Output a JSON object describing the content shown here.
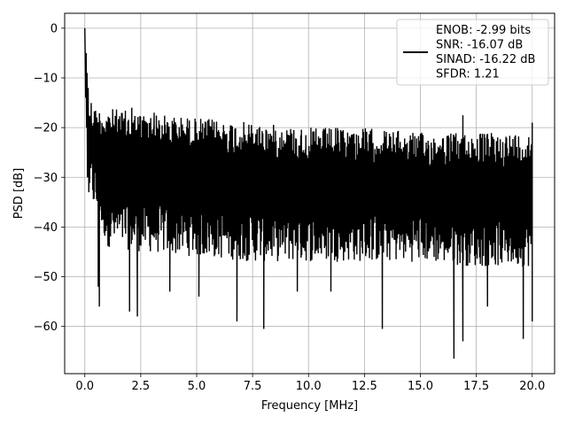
{
  "chart_data": {
    "type": "line",
    "title": "",
    "xlabel": "Frequency [MHz]",
    "ylabel": "PSD [dB]",
    "xlim": [
      -0.9,
      21.0
    ],
    "ylim": [
      -69.5,
      3.0
    ],
    "xticks": [
      0.0,
      2.5,
      5.0,
      7.5,
      10.0,
      12.5,
      15.0,
      17.5,
      20.0
    ],
    "xtick_labels": [
      "0.0",
      "2.5",
      "5.0",
      "7.5",
      "10.0",
      "12.5",
      "15.0",
      "17.5",
      "20.0"
    ],
    "yticks": [
      0,
      -10,
      -20,
      -30,
      -40,
      -50,
      -60
    ],
    "ytick_labels": [
      "0",
      "−10",
      "−20",
      "−30",
      "−40",
      "−50",
      "−60"
    ],
    "grid": true,
    "legend_position": "upper-right",
    "series": [
      {
        "name": "ENOB: -2.99 bits\nSNR: -16.07 dB\nSINAD: -16.22 dB\nSFDR: 1.21",
        "legend_lines": [
          "ENOB: -2.99 bits",
          "SNR: -16.07 dB",
          "SINAD: -16.22 dB",
          "SFDR: 1.21"
        ],
        "color": "#000000",
        "x_range": [
          0.0,
          20.0
        ],
        "peak": {
          "x": 0.0,
          "y": 0.0
        },
        "upper_envelope": {
          "x": [
            0.2,
            0.5,
            1.0,
            2.5,
            5.0,
            7.5,
            10.0,
            12.5,
            15.0,
            17.5,
            20.0
          ],
          "y": [
            -13,
            -16,
            -16,
            -17,
            -18,
            -19,
            -20,
            -20,
            -21,
            -21,
            -21
          ]
        },
        "lower_envelope": {
          "x": [
            0.2,
            1.0,
            2.5,
            5.0,
            7.5,
            10.0,
            12.5,
            15.0,
            17.5,
            20.0
          ],
          "y": [
            -34,
            -44,
            -45,
            -46,
            -47,
            -47,
            -47,
            -47,
            -48,
            -48
          ]
        },
        "deep_dips": [
          {
            "x": 0.6,
            "y": -52
          },
          {
            "x": 0.65,
            "y": -56
          },
          {
            "x": 2.0,
            "y": -57
          },
          {
            "x": 2.35,
            "y": -58
          },
          {
            "x": 3.8,
            "y": -53
          },
          {
            "x": 5.1,
            "y": -54
          },
          {
            "x": 6.8,
            "y": -59
          },
          {
            "x": 8.0,
            "y": -60.5
          },
          {
            "x": 9.5,
            "y": -53
          },
          {
            "x": 11.0,
            "y": -53
          },
          {
            "x": 13.3,
            "y": -60.5
          },
          {
            "x": 16.5,
            "y": -66.5
          },
          {
            "x": 16.9,
            "y": -63
          },
          {
            "x": 18.0,
            "y": -56
          },
          {
            "x": 19.6,
            "y": -62.5
          },
          {
            "x": 20.0,
            "y": -59
          }
        ],
        "tall_spikes": [
          {
            "x": 2.1,
            "y": -16
          },
          {
            "x": 3.1,
            "y": -17
          },
          {
            "x": 16.9,
            "y": -17.5
          },
          {
            "x": 20.0,
            "y": -19
          }
        ]
      }
    ]
  }
}
